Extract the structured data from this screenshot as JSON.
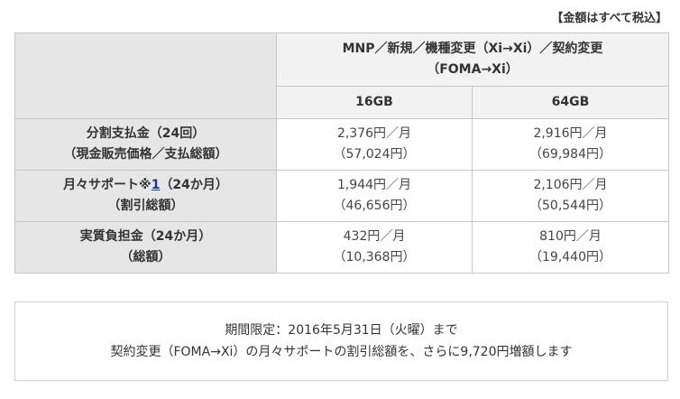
{
  "tax_note": "【金額はすべて税込】",
  "table": {
    "plan_header_line1": "MNP／新規／機種変更（Xi→Xi）／契約変更",
    "plan_header_line2": "（FOMA→Xi）",
    "capacities": [
      "16GB",
      "64GB"
    ],
    "rows": [
      {
        "label_line1": "分割支払金（24回）",
        "label_line2": "（現金販売価格／支払総額）",
        "values": [
          {
            "monthly": "2,376円／月",
            "total": "（57,024円）"
          },
          {
            "monthly": "2,916円／月",
            "total": "（69,984円）"
          }
        ]
      },
      {
        "label_pre": "月々サポート※",
        "label_link": "1",
        "label_post": "（24か月）",
        "label_line2": "（割引総額）",
        "values": [
          {
            "monthly": "1,944円／月",
            "total": "（46,656円）"
          },
          {
            "monthly": "2,106円／月",
            "total": "（50,544円）"
          }
        ]
      },
      {
        "label_line1": "実質負担金（24か月）",
        "label_line2": "（総額）",
        "values": [
          {
            "monthly": "432円／月",
            "total": "（10,368円）"
          },
          {
            "monthly": "810円／月",
            "total": "（19,440円）"
          }
        ]
      }
    ]
  },
  "notice": {
    "line1": "期間限定：2016年5月31日（火曜）まで",
    "line2": "契約変更（FOMA→Xi）の月々サポートの割引総額を、さらに9,720円増額します"
  }
}
